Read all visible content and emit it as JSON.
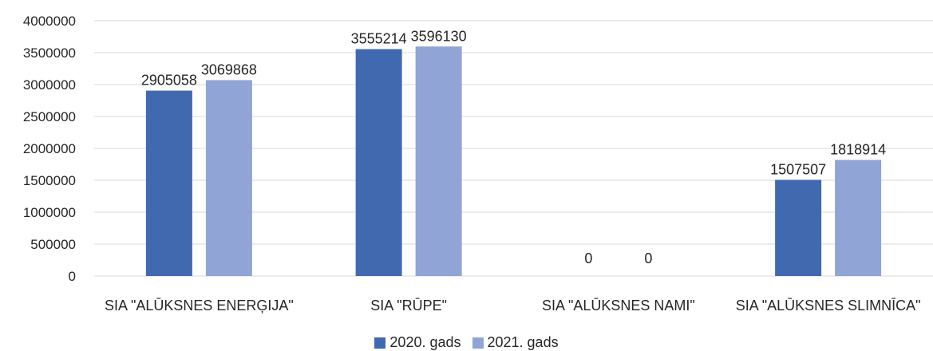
{
  "chart_data": {
    "type": "bar",
    "categories": [
      "SIA \"ALŪKSNES ENERĢIJA\"",
      "SIA \"RŪPE\"",
      "SIA \"ALŪKSNES NAMI\"",
      "SIA \"ALŪKSNES SLIMNĪCA\""
    ],
    "series": [
      {
        "name": "2020. gads",
        "values": [
          2905058,
          3555214,
          0,
          1507507
        ],
        "color": "#4169B0"
      },
      {
        "name": "2021. gads",
        "values": [
          3069868,
          3596130,
          0,
          1818914
        ],
        "color": "#90A5D6"
      }
    ],
    "ylim": [
      0,
      4000000
    ],
    "yticks": [
      0,
      500000,
      1000000,
      1500000,
      2000000,
      2500000,
      3000000,
      3500000,
      4000000
    ],
    "title": "",
    "xlabel": "",
    "ylabel": "",
    "grid": true,
    "legend_position": "bottom",
    "data_labels": true
  }
}
